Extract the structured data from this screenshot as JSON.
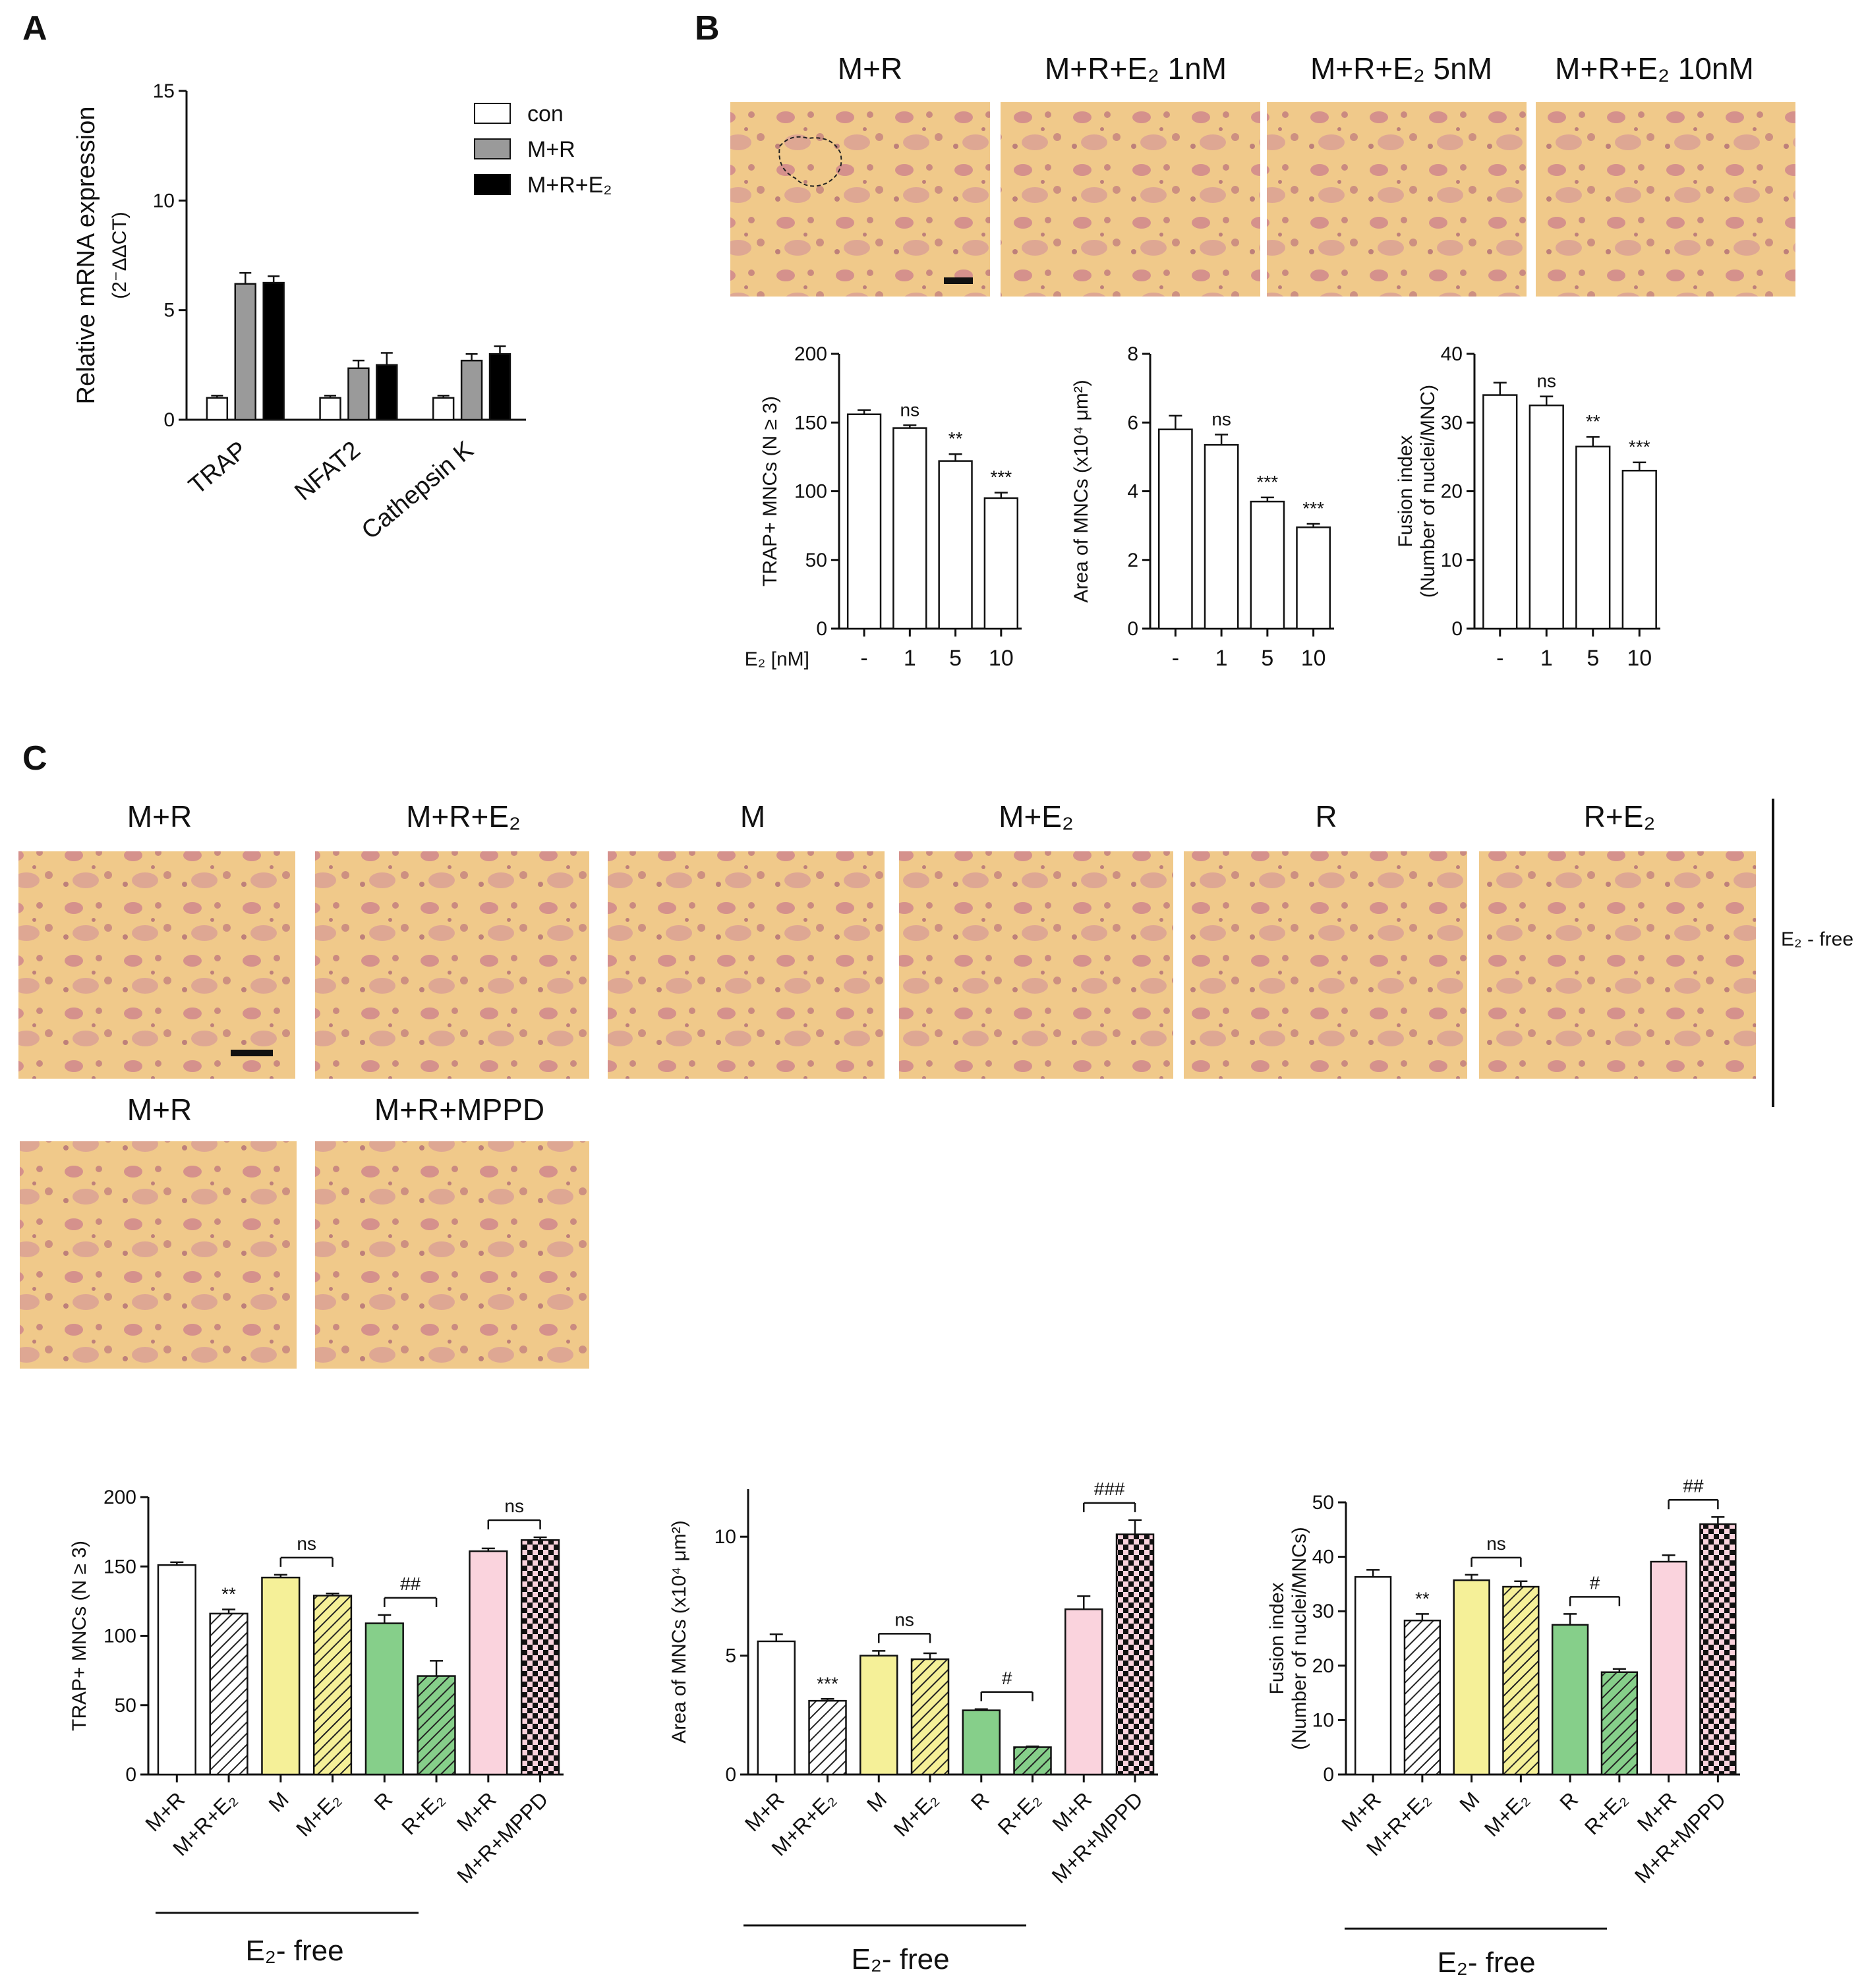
{
  "panel_labels": [
    "A",
    "B",
    "C"
  ],
  "colors": {
    "con": "#ffffff",
    "mr": "#9a9a9a",
    "mre2": "#000000",
    "yellow": "#f5f098",
    "green": "#86cf8a",
    "pink": "#fad3dd",
    "micro_bg": "#f0c98a",
    "micro_cell": "#c9798e"
  },
  "panelB": {
    "conditions": [
      "M+R",
      "M+R+E₂ 1nM",
      "M+R+E₂ 5nM",
      "M+R+E₂ 10nM"
    ],
    "xaxis_prefix": "E₂ [nM]"
  },
  "panelC": {
    "row1": [
      "M+R",
      "M+R+E₂",
      "M",
      "M+E₂",
      "R",
      "R+E₂"
    ],
    "row2": [
      "M+R",
      "M+R+MPPD"
    ],
    "side_label": "E₂ - free",
    "bottom_label": "E₂- free"
  },
  "chart_data": [
    {
      "id": "A",
      "type": "bar",
      "categories": [
        "TRAP",
        "NFAT2",
        "Cathepsin K"
      ],
      "series": [
        {
          "name": "con",
          "values": [
            1.0,
            1.0,
            1.0
          ],
          "errors": [
            0.1,
            0.1,
            0.1
          ]
        },
        {
          "name": "M+R",
          "values": [
            6.2,
            2.35,
            2.7
          ],
          "errors": [
            0.5,
            0.35,
            0.3
          ]
        },
        {
          "name": "M+R+E₂",
          "values": [
            6.25,
            2.5,
            3.0
          ],
          "errors": [
            0.3,
            0.55,
            0.35
          ]
        }
      ],
      "ylabel": "Relative mRNA expression",
      "ylabel2": "(2⁻ΔΔCT)",
      "ylim": [
        0,
        15
      ],
      "yticks": [
        0,
        5,
        10,
        15
      ],
      "legend_position": "top-right",
      "significance": []
    },
    {
      "id": "B1",
      "type": "bar",
      "categories": [
        "-",
        "1",
        "5",
        "10"
      ],
      "values": [
        156,
        146,
        122,
        95
      ],
      "errors": [
        3,
        2,
        5,
        4
      ],
      "ylabel": "TRAP+ MNCs (N ≥ 3)",
      "ylim": [
        0,
        200
      ],
      "yticks": [
        0,
        50,
        100,
        150,
        200
      ],
      "significance": [
        {
          "label": "ns",
          "bar": 1
        },
        {
          "label": "**",
          "bar": 2
        },
        {
          "label": "***",
          "bar": 3
        }
      ]
    },
    {
      "id": "B2",
      "type": "bar",
      "categories": [
        "-",
        "1",
        "5",
        "10"
      ],
      "values": [
        5.8,
        5.35,
        3.7,
        2.95
      ],
      "errors": [
        0.4,
        0.3,
        0.12,
        0.1
      ],
      "ylabel": "Area of MNCs (x10⁴ μm²)",
      "ylim": [
        0,
        8
      ],
      "yticks": [
        0,
        2,
        4,
        6,
        8
      ],
      "significance": [
        {
          "label": "ns",
          "bar": 1
        },
        {
          "label": "***",
          "bar": 2
        },
        {
          "label": "***",
          "bar": 3
        }
      ]
    },
    {
      "id": "B3",
      "type": "bar",
      "categories": [
        "-",
        "1",
        "5",
        "10"
      ],
      "values": [
        34,
        32.5,
        26.5,
        23
      ],
      "errors": [
        1.8,
        1.3,
        1.4,
        1.2
      ],
      "ylabel": "Fusion index",
      "ylabel2": "(Number of nuclei/MNC)",
      "ylim": [
        0,
        40
      ],
      "yticks": [
        0,
        10,
        20,
        30,
        40
      ],
      "significance": [
        {
          "label": "ns",
          "bar": 1
        },
        {
          "label": "**",
          "bar": 2
        },
        {
          "label": "***",
          "bar": 3
        }
      ]
    },
    {
      "id": "C1",
      "type": "bar",
      "categories": [
        "M+R",
        "M+R+E₂",
        "M",
        "M+E₂",
        "R",
        "R+E₂",
        "M+R",
        "M+R+MPPD"
      ],
      "values": [
        151,
        116,
        142,
        129,
        109,
        71,
        161,
        169
      ],
      "errors": [
        2,
        3,
        2,
        1.5,
        6,
        11,
        2,
        2
      ],
      "ylabel": "TRAP+ MNCs (N ≥ 3)",
      "ylim": [
        0,
        200
      ],
      "yticks": [
        0,
        50,
        100,
        150,
        200
      ],
      "significance": [
        {
          "label": "**",
          "bar": 1
        },
        {
          "label": "ns",
          "pair": [
            2,
            3
          ]
        },
        {
          "label": "##",
          "pair": [
            4,
            5
          ]
        },
        {
          "label": "ns",
          "pair": [
            6,
            7
          ]
        }
      ]
    },
    {
      "id": "C2",
      "type": "bar",
      "categories": [
        "M+R",
        "M+R+E₂",
        "M",
        "M+E₂",
        "R",
        "R+E₂",
        "M+R",
        "M+R+MPPD"
      ],
      "values": [
        5.6,
        3.1,
        5.0,
        4.85,
        2.7,
        1.15,
        6.95,
        10.1
      ],
      "errors": [
        0.3,
        0.08,
        0.2,
        0.25,
        0.05,
        0.03,
        0.55,
        0.6
      ],
      "ylabel": "Area of MNCs (x10⁴ μm²)",
      "ylim": [
        0,
        12
      ],
      "yticks": [
        0,
        5,
        10
      ],
      "significance": [
        {
          "label": "***",
          "bar": 1
        },
        {
          "label": "ns",
          "pair": [
            2,
            3
          ]
        },
        {
          "label": "#",
          "pair": [
            4,
            5
          ]
        },
        {
          "label": "###",
          "pair": [
            6,
            7
          ]
        }
      ]
    },
    {
      "id": "C3",
      "type": "bar",
      "categories": [
        "M+R",
        "M+R+E₂",
        "M",
        "M+E₂",
        "R",
        "R+E₂",
        "M+R",
        "M+R+MPPD"
      ],
      "values": [
        36.3,
        28.3,
        35.7,
        34.5,
        27.5,
        18.8,
        39.1,
        46.0
      ],
      "errors": [
        1.3,
        1.2,
        1.0,
        1.0,
        2.0,
        0.6,
        1.2,
        1.3
      ],
      "ylabel": "Fusion index",
      "ylabel2": "(Number of nuclei/MNCs)",
      "ylim": [
        0,
        50
      ],
      "yticks": [
        0,
        10,
        20,
        30,
        40,
        50
      ],
      "significance": [
        {
          "label": "**",
          "bar": 1
        },
        {
          "label": "ns",
          "pair": [
            2,
            3
          ]
        },
        {
          "label": "#",
          "pair": [
            4,
            5
          ]
        },
        {
          "label": "##",
          "pair": [
            6,
            7
          ]
        }
      ]
    }
  ]
}
